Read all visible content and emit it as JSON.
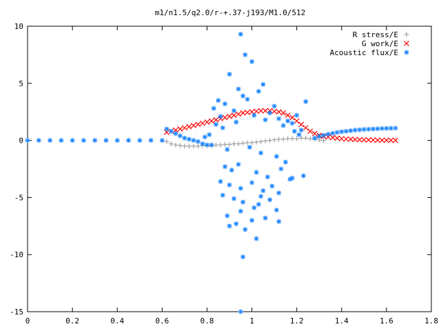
{
  "chart_data": {
    "type": "scatter",
    "title": "m1/n1.5/q2.0/r-+.37-j193/M1.0/512",
    "xlabel": "",
    "ylabel": "",
    "xlim": [
      0,
      1.8
    ],
    "ylim": [
      -15,
      10
    ],
    "x_ticks": [
      "0",
      "0.2",
      "0.4",
      "0.6",
      "0.8",
      "1",
      "1.2",
      "1.4",
      "1.6",
      "1.8"
    ],
    "y_ticks": [
      "10",
      "5",
      "0",
      "-5",
      "-10",
      "-15"
    ],
    "grid": false,
    "legend_position": "top-right",
    "series": [
      {
        "name": "R stress/E",
        "marker": "plus",
        "color": "#a0a0a0",
        "x": [
          0.62,
          0.64,
          0.66,
          0.68,
          0.7,
          0.72,
          0.74,
          0.76,
          0.78,
          0.8,
          0.82,
          0.84,
          0.86,
          0.88,
          0.9,
          0.92,
          0.94,
          0.96,
          0.98,
          1.0,
          1.02,
          1.04,
          1.06,
          1.08,
          1.1,
          1.12,
          1.14,
          1.16,
          1.18,
          1.2,
          1.22,
          1.24,
          1.26,
          1.28,
          1.3,
          1.32
        ],
        "y": [
          -0.1,
          -0.3,
          -0.4,
          -0.45,
          -0.5,
          -0.5,
          -0.5,
          -0.5,
          -0.45,
          -0.45,
          -0.45,
          -0.4,
          -0.4,
          -0.35,
          -0.35,
          -0.3,
          -0.3,
          -0.25,
          -0.2,
          -0.2,
          -0.15,
          -0.1,
          -0.05,
          0.0,
          0.05,
          0.1,
          0.1,
          0.15,
          0.15,
          0.15,
          0.2,
          0.2,
          0.15,
          0.1,
          0.05,
          0.0
        ]
      },
      {
        "name": "G work/E",
        "marker": "cross",
        "color": "#ff0000",
        "x": [
          0.62,
          0.64,
          0.66,
          0.68,
          0.7,
          0.72,
          0.74,
          0.76,
          0.78,
          0.8,
          0.82,
          0.84,
          0.86,
          0.88,
          0.9,
          0.92,
          0.94,
          0.96,
          0.98,
          1.0,
          1.02,
          1.04,
          1.06,
          1.08,
          1.1,
          1.12,
          1.14,
          1.16,
          1.18,
          1.2,
          1.22,
          1.24,
          1.26,
          1.28,
          1.3,
          1.32,
          1.34,
          1.36,
          1.38,
          1.4,
          1.42,
          1.44,
          1.46,
          1.48,
          1.5,
          1.52,
          1.54,
          1.56,
          1.58,
          1.6,
          1.62,
          1.64
        ],
        "y": [
          0.7,
          0.8,
          0.9,
          1.0,
          1.1,
          1.2,
          1.3,
          1.4,
          1.5,
          1.6,
          1.7,
          1.8,
          1.9,
          2.0,
          2.1,
          2.2,
          2.3,
          2.4,
          2.45,
          2.5,
          2.55,
          2.6,
          2.6,
          2.6,
          2.55,
          2.5,
          2.4,
          2.2,
          2.0,
          1.7,
          1.4,
          1.1,
          0.8,
          0.6,
          0.45,
          0.35,
          0.3,
          0.25,
          0.2,
          0.15,
          0.12,
          0.1,
          0.08,
          0.06,
          0.05,
          0.04,
          0.03,
          0.02,
          0.02,
          0.01,
          0.01,
          0.0
        ]
      },
      {
        "name": "Acoustic flux/E",
        "marker": "star",
        "color": "#1a85ff",
        "x": [
          0.0,
          0.05,
          0.1,
          0.15,
          0.2,
          0.25,
          0.3,
          0.35,
          0.4,
          0.45,
          0.5,
          0.55,
          0.6,
          0.62,
          0.64,
          0.66,
          0.68,
          0.7,
          0.72,
          0.74,
          0.76,
          0.78,
          0.8,
          0.79,
          0.81,
          1.28,
          1.3,
          1.32,
          1.34,
          1.36,
          1.38,
          1.4,
          1.42,
          1.44,
          1.46,
          1.48,
          1.5,
          1.52,
          1.54,
          1.56,
          1.58,
          1.6,
          1.62,
          1.64,
          0.95,
          0.97,
          1.0,
          0.9,
          0.94,
          0.85,
          0.88,
          1.05,
          1.03,
          0.98,
          1.1,
          1.2,
          1.24,
          0.83,
          0.86,
          0.92,
          0.96,
          1.08,
          1.12,
          1.16,
          1.18,
          1.22,
          0.84,
          0.87,
          0.93,
          1.01,
          1.06,
          1.14,
          1.19,
          1.21,
          0.82,
          0.89,
          0.99,
          1.04,
          1.11,
          1.15,
          0.88,
          0.91,
          0.94,
          1.02,
          1.07,
          1.13,
          1.17,
          1.23,
          0.86,
          0.9,
          0.95,
          1.0,
          1.05,
          1.09,
          1.12,
          1.18,
          0.87,
          0.92,
          0.96,
          1.03,
          1.08,
          1.11,
          0.89,
          0.95,
          1.0,
          1.06,
          1.12,
          0.9,
          0.93,
          0.97,
          1.02,
          0.96,
          0.95,
          1.01,
          1.04
        ],
        "y": [
          0,
          0,
          0,
          0,
          0,
          0,
          0,
          0,
          0,
          0,
          0,
          0,
          0,
          1.0,
          0.8,
          0.6,
          0.4,
          0.2,
          0.1,
          0.0,
          -0.1,
          -0.3,
          -0.4,
          0.3,
          0.5,
          0.2,
          0.35,
          0.45,
          0.55,
          0.62,
          0.7,
          0.76,
          0.8,
          0.85,
          0.9,
          0.93,
          0.96,
          0.98,
          1.0,
          1.02,
          1.04,
          1.05,
          1.06,
          1.07,
          9.3,
          7.5,
          6.9,
          5.8,
          4.5,
          3.5,
          3.2,
          4.9,
          4.3,
          3.6,
          3.0,
          2.2,
          3.4,
          2.8,
          2.1,
          2.6,
          3.9,
          2.4,
          1.9,
          1.7,
          1.5,
          0.9,
          1.4,
          1.1,
          1.6,
          2.2,
          1.8,
          1.3,
          0.8,
          0.5,
          -0.4,
          -0.8,
          -0.6,
          -1.1,
          -1.4,
          -1.9,
          -2.3,
          -2.6,
          -2.1,
          -2.8,
          -3.2,
          -2.5,
          -3.4,
          -3.1,
          -3.6,
          -3.9,
          -4.2,
          -3.7,
          -4.4,
          -4.0,
          -4.6,
          -3.3,
          -4.8,
          -5.1,
          -5.4,
          -5.6,
          -5.2,
          -6.1,
          -6.6,
          -6.2,
          -7.0,
          -6.8,
          -7.1,
          -7.5,
          -7.3,
          -7.8,
          -8.6,
          -10.2,
          -15.0,
          -5.9,
          -4.9
        ]
      }
    ]
  }
}
